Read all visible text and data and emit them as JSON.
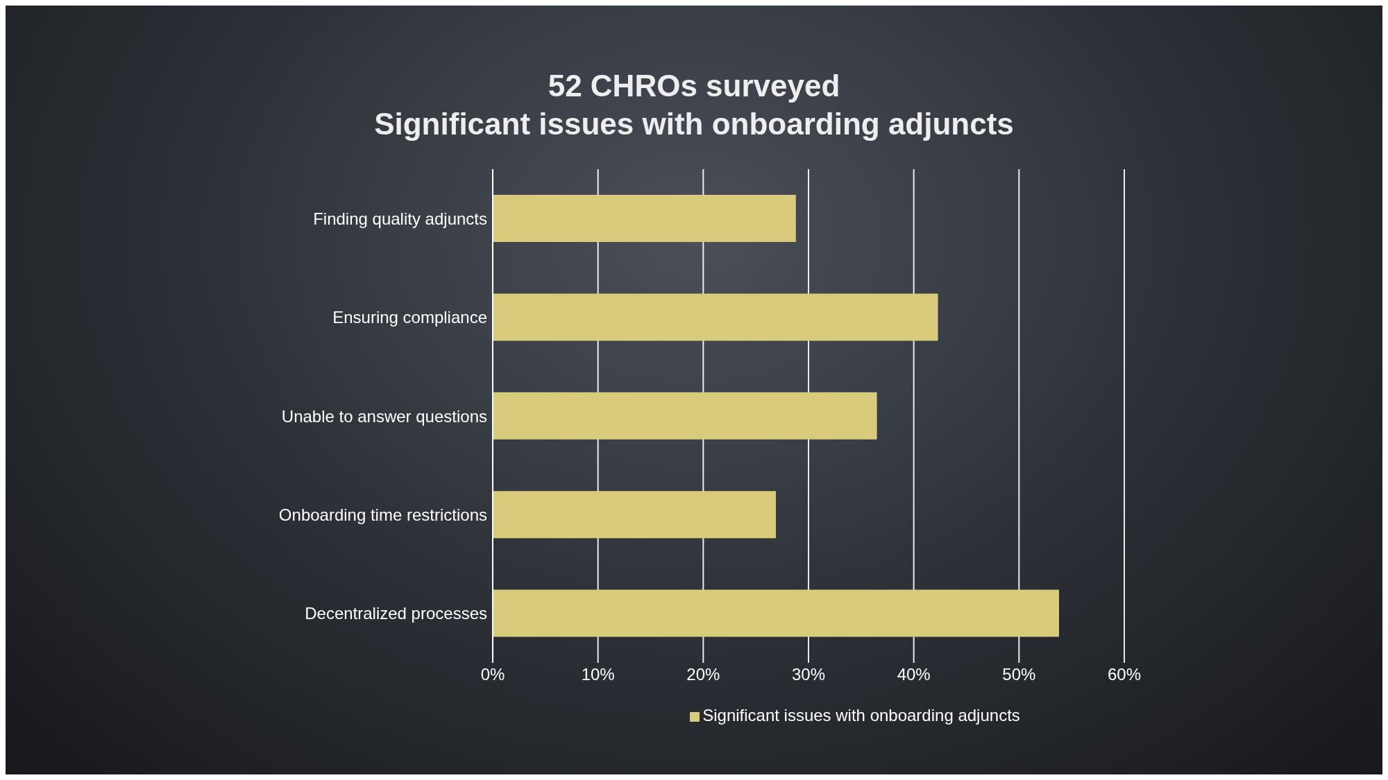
{
  "chart_data": {
    "type": "bar",
    "orientation": "horizontal",
    "title": "52 CHROs surveyed",
    "subtitle": "Significant issues with onboarding adjuncts",
    "categories": [
      "Finding quality adjuncts",
      "Ensuring compliance",
      "Unable to answer questions",
      "Onboarding time restrictions",
      "Decentralized processes"
    ],
    "series": [
      {
        "name": "Significant issues with onboarding adjuncts",
        "color": "#d8cc7c",
        "values": [
          28.8,
          42.3,
          36.5,
          26.9,
          53.8
        ]
      }
    ],
    "xlim": [
      0,
      60
    ],
    "xticks": [
      {
        "value": 0,
        "label": "0%"
      },
      {
        "value": 10,
        "label": "10%"
      },
      {
        "value": 20,
        "label": "20%"
      },
      {
        "value": 30,
        "label": "30%"
      },
      {
        "value": 40,
        "label": "40%"
      },
      {
        "value": 50,
        "label": "50%"
      },
      {
        "value": 60,
        "label": "60%"
      }
    ],
    "grid": "x",
    "legend": "bottom"
  }
}
